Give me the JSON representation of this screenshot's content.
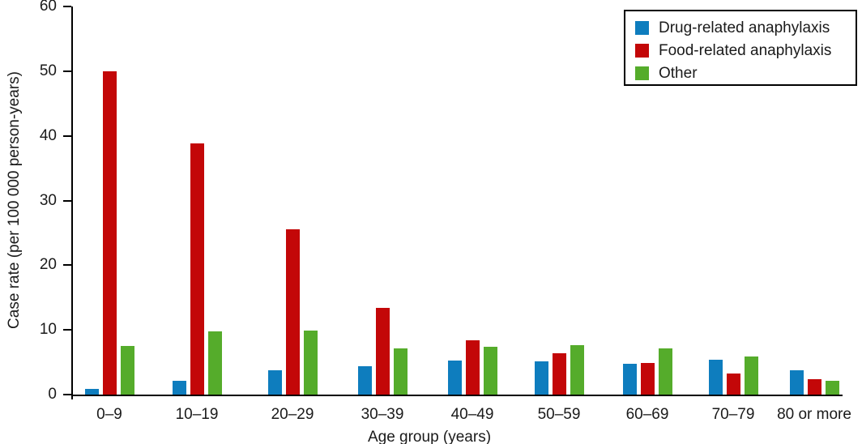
{
  "chart_data": {
    "type": "bar",
    "title": "",
    "xlabel": "Age group (years)",
    "ylabel": "Case rate (per 100 000 person-years)",
    "categories": [
      "0–9",
      "10–19",
      "20–29",
      "30–39",
      "40–49",
      "50–59",
      "60–69",
      "70–79",
      "80 or more"
    ],
    "series": [
      {
        "name": "Drug-related anaphylaxis",
        "color": "#0e7dbe",
        "values": [
          0.9,
          2.1,
          3.7,
          4.4,
          5.3,
          5.1,
          4.8,
          5.4,
          3.8
        ]
      },
      {
        "name": "Food-related anaphylaxis",
        "color": "#c30708",
        "values": [
          50.0,
          38.8,
          25.6,
          13.4,
          8.4,
          6.4,
          4.9,
          3.3,
          2.4
        ]
      },
      {
        "name": "Other",
        "color": "#55ac2b",
        "values": [
          7.5,
          9.8,
          9.9,
          7.1,
          7.4,
          7.7,
          7.2,
          5.9,
          2.1
        ]
      }
    ],
    "ylim": [
      0,
      60
    ],
    "yticks": [
      0,
      10,
      20,
      30,
      40,
      50,
      60
    ],
    "grid": false,
    "legend_position": "top-right",
    "axis_color": "#000000",
    "text_color": "#1a1a1a"
  }
}
